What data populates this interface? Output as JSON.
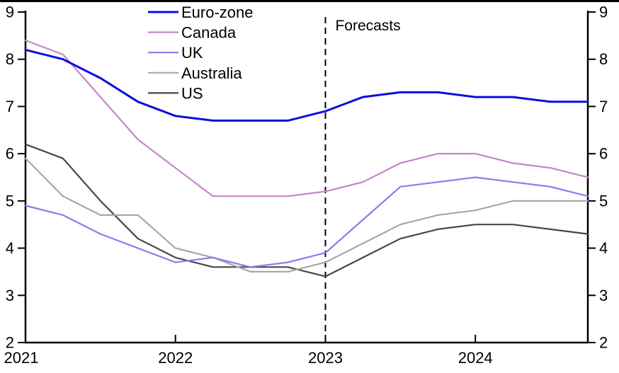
{
  "chart_data": {
    "type": "line",
    "title": "",
    "xlabel": "",
    "ylabel": "",
    "x_quarters": [
      "2021 Q1",
      "2021 Q2",
      "2021 Q3",
      "2021 Q4",
      "2022 Q1",
      "2022 Q2",
      "2022 Q3",
      "2022 Q4",
      "2023 Q1",
      "2023 Q2",
      "2023 Q3",
      "2023 Q4",
      "2024 Q1",
      "2024 Q2",
      "2024 Q3",
      "2024 Q4"
    ],
    "x_tick_labels": [
      "2021",
      "2022",
      "2023",
      "2024"
    ],
    "x_tick_indices": [
      0,
      4,
      8,
      12
    ],
    "y_ticks": [
      9,
      8,
      7,
      6,
      5,
      4,
      3,
      2
    ],
    "ylim": [
      2,
      9
    ],
    "grid": "off",
    "legend_position": "top-left-inside",
    "axis_color": "#000000",
    "tick_label_color": "#000000",
    "series": [
      {
        "name": "Euro-zone",
        "color": "#0d0de0",
        "line_width": 3,
        "values": [
          8.2,
          8.0,
          7.6,
          7.1,
          6.8,
          6.7,
          6.7,
          6.7,
          6.9,
          7.2,
          7.3,
          7.3,
          7.2,
          7.2,
          7.1,
          7.1
        ]
      },
      {
        "name": "Canada",
        "color": "#c687c9",
        "line_width": 2.2,
        "values": [
          8.4,
          8.1,
          7.2,
          6.3,
          5.7,
          5.1,
          5.1,
          5.1,
          5.2,
          5.4,
          5.8,
          6.0,
          6.0,
          5.8,
          5.7,
          5.5
        ]
      },
      {
        "name": "UK",
        "color": "#8080f0",
        "line_width": 2.2,
        "values": [
          4.9,
          4.7,
          4.3,
          4.0,
          3.7,
          3.8,
          3.6,
          3.7,
          3.9,
          4.6,
          5.3,
          5.4,
          5.5,
          5.4,
          5.3,
          5.1
        ]
      },
      {
        "name": "Australia",
        "color": "#a8a8a8",
        "line_width": 2.2,
        "values": [
          5.9,
          5.1,
          4.7,
          4.7,
          4.0,
          3.8,
          3.5,
          3.5,
          3.7,
          4.1,
          4.5,
          4.7,
          4.8,
          5.0,
          5.0,
          5.0
        ]
      },
      {
        "name": "US",
        "color": "#474747",
        "line_width": 2.2,
        "values": [
          6.2,
          5.9,
          5.0,
          4.2,
          3.8,
          3.6,
          3.6,
          3.6,
          3.4,
          3.8,
          4.2,
          4.4,
          4.5,
          4.5,
          4.4,
          4.3
        ]
      }
    ],
    "annotations": [
      {
        "text": "Forecasts",
        "x_index": 8,
        "style": "vertical-dashed-line",
        "line_color": "#000000"
      }
    ]
  }
}
